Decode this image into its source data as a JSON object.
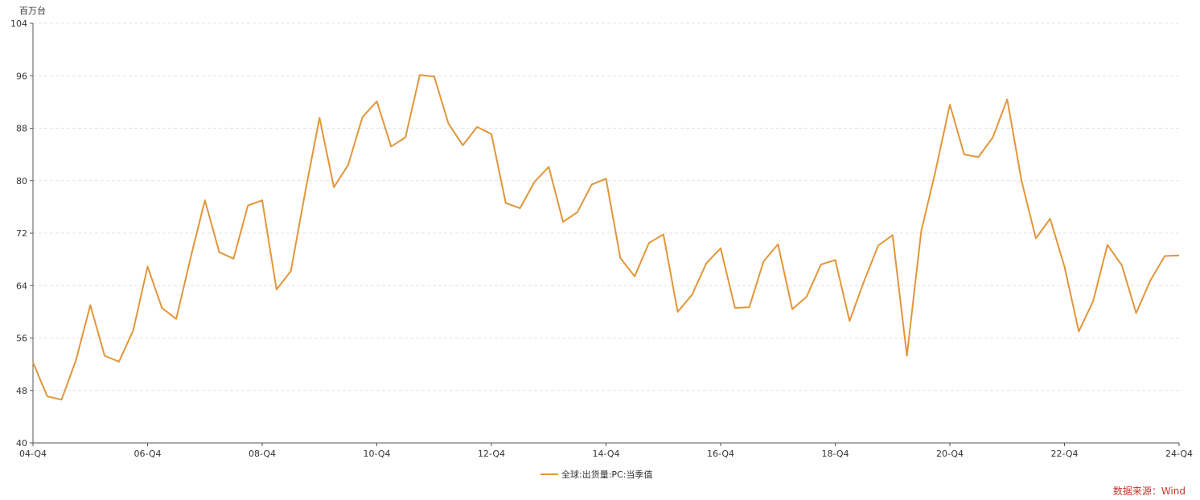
{
  "chart_data": {
    "type": "line",
    "unit": "百万台",
    "ylim": [
      40,
      104
    ],
    "yticks": [
      40,
      48,
      56,
      64,
      72,
      80,
      88,
      96,
      104
    ],
    "xtick_labels": [
      "04-Q4",
      "06-Q4",
      "08-Q4",
      "10-Q4",
      "12-Q4",
      "14-Q4",
      "16-Q4",
      "18-Q4",
      "20-Q4",
      "22-Q4",
      "24-Q4"
    ],
    "grid": true,
    "legend_position": "bottom",
    "series": [
      {
        "name": "全球:出货量:PC:当季值",
        "color": "#E2963A",
        "x": [
          "04-Q4",
          "05-Q1",
          "05-Q2",
          "05-Q3",
          "05-Q4",
          "06-Q1",
          "06-Q2",
          "06-Q3",
          "06-Q4",
          "07-Q1",
          "07-Q2",
          "07-Q3",
          "07-Q4",
          "08-Q1",
          "08-Q2",
          "08-Q3",
          "08-Q4",
          "09-Q1",
          "09-Q2",
          "09-Q3",
          "09-Q4",
          "10-Q1",
          "10-Q2",
          "10-Q3",
          "10-Q4",
          "11-Q1",
          "11-Q2",
          "11-Q3",
          "11-Q4",
          "12-Q1",
          "12-Q2",
          "12-Q3",
          "12-Q4",
          "13-Q1",
          "13-Q2",
          "13-Q3",
          "13-Q4",
          "14-Q1",
          "14-Q2",
          "14-Q3",
          "14-Q4",
          "15-Q1",
          "15-Q2",
          "15-Q3",
          "15-Q4",
          "16-Q1",
          "16-Q2",
          "16-Q3",
          "16-Q4",
          "17-Q1",
          "17-Q2",
          "17-Q3",
          "17-Q4",
          "18-Q1",
          "18-Q2",
          "18-Q3",
          "18-Q4",
          "19-Q1",
          "19-Q2",
          "19-Q3",
          "19-Q4",
          "20-Q1",
          "20-Q2",
          "20-Q3",
          "20-Q4",
          "21-Q1",
          "21-Q2",
          "21-Q3",
          "21-Q4",
          "22-Q1",
          "22-Q2",
          "22-Q3",
          "22-Q4",
          "23-Q1",
          "23-Q2",
          "23-Q3",
          "23-Q4",
          "24-Q1",
          "24-Q2",
          "24-Q3",
          "24-Q4"
        ],
        "values": [
          52.3,
          47.1,
          46.6,
          52.6,
          61.0,
          53.3,
          52.4,
          57.2,
          66.9,
          60.6,
          58.9,
          68.2,
          77.0,
          69.1,
          68.1,
          76.2,
          77.0,
          63.4,
          66.2,
          78.2,
          89.6,
          79.0,
          82.4,
          89.7,
          92.1,
          85.2,
          86.6,
          96.1,
          95.9,
          88.7,
          85.4,
          88.2,
          87.1,
          76.6,
          75.8,
          79.8,
          82.1,
          73.7,
          75.2,
          79.4,
          80.3,
          68.2,
          65.4,
          70.5,
          71.8,
          60.0,
          62.6,
          67.4,
          69.7,
          60.6,
          60.7,
          67.7,
          70.3,
          60.4,
          62.3,
          67.2,
          67.9,
          58.6,
          64.6,
          70.1,
          71.7,
          53.3,
          72.3,
          81.5,
          91.6,
          84.0,
          83.6,
          86.6,
          92.4,
          80.0,
          71.2,
          74.2,
          66.9,
          57.0,
          61.6,
          70.2,
          67.1,
          59.8,
          64.8,
          68.5,
          68.6
        ]
      }
    ]
  },
  "source_label": "数据来源：Wind"
}
